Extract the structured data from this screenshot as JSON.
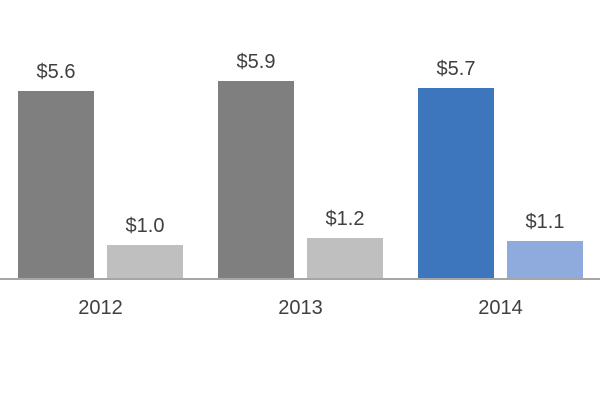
{
  "chart_data": {
    "type": "bar",
    "title": "",
    "xlabel": "",
    "ylabel": "",
    "categories": [
      "2012",
      "2013",
      "2014"
    ],
    "series": [
      {
        "name": "large-value-series",
        "values": [
          5.6,
          5.9,
          5.7
        ],
        "labels": [
          "$5.6",
          "$5.9",
          "$5.7"
        ],
        "colors": [
          "#7F7F7F",
          "#7F7F7F",
          "#3D76BC"
        ]
      },
      {
        "name": "small-value-series",
        "values": [
          1.0,
          1.2,
          1.1
        ],
        "labels": [
          "$1.0",
          "$1.2",
          "$1.1"
        ],
        "colors": [
          "#BFBFBF",
          "#BFBFBF",
          "#8FAADC"
        ]
      }
    ],
    "value_labels_position": "outside-end",
    "highlighted_category": "2014",
    "ylim": [
      0,
      6.5
    ],
    "grid": false,
    "legend": "none",
    "axis_line_color": "#A6A6A6",
    "label_text_color": "#404040"
  }
}
